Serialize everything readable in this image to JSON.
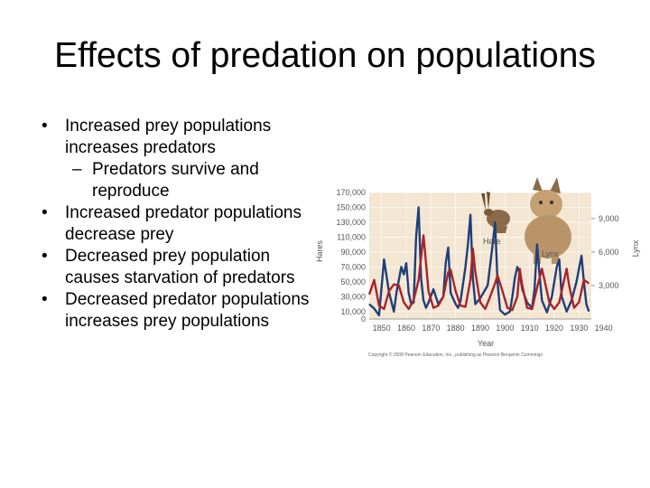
{
  "slide": {
    "title": "Effects of predation on populations",
    "bullets": [
      {
        "text": "Increased prey populations increases predators",
        "sub": [
          "Predators survive and reproduce"
        ]
      },
      {
        "text": "Increased predator populations decrease prey",
        "sub": []
      },
      {
        "text": "Decreased prey population causes starvation of predators",
        "sub": []
      },
      {
        "text": "Decreased predator populations increases prey populations",
        "sub": []
      }
    ],
    "dash": "–"
  },
  "chart_data": {
    "type": "line",
    "xlabel": "Year",
    "ylabel_left": "Hares",
    "ylabel_right": "Lynx",
    "xlim": [
      1845,
      1935
    ],
    "ylim_left": [
      0,
      170000
    ],
    "ylim_right": [
      0,
      11333
    ],
    "x_ticks": [
      1850,
      1860,
      1870,
      1880,
      1890,
      1900,
      1910,
      1920,
      1930,
      1940
    ],
    "y_ticks_left": [
      {
        "v": 0,
        "label": "0"
      },
      {
        "v": 10000,
        "label": "10,000"
      },
      {
        "v": 30000,
        "label": "30,000"
      },
      {
        "v": 50000,
        "label": "50,000"
      },
      {
        "v": 70000,
        "label": "70,000"
      },
      {
        "v": 90000,
        "label": "90,000"
      },
      {
        "v": 110000,
        "label": "110,000"
      },
      {
        "v": 130000,
        "label": "130,000"
      },
      {
        "v": 150000,
        "label": "150,000"
      },
      {
        "v": 170000,
        "label": "170,000"
      }
    ],
    "y_ticks_right": [
      {
        "v": 3000,
        "label": "3,000"
      },
      {
        "v": 6000,
        "label": "6,000"
      },
      {
        "v": 9000,
        "label": "9,000"
      }
    ],
    "series": [
      {
        "name": "Hare",
        "color": "#1f3f7a",
        "axis": "left",
        "points": [
          [
            1845,
            20000
          ],
          [
            1847,
            14000
          ],
          [
            1849,
            5000
          ],
          [
            1851,
            80000
          ],
          [
            1853,
            36000
          ],
          [
            1855,
            10000
          ],
          [
            1856,
            35000
          ],
          [
            1858,
            70000
          ],
          [
            1859,
            60000
          ],
          [
            1860,
            75000
          ],
          [
            1861,
            35000
          ],
          [
            1862,
            20000
          ],
          [
            1863,
            22000
          ],
          [
            1864,
            110000
          ],
          [
            1865,
            150000
          ],
          [
            1866,
            55000
          ],
          [
            1867,
            25000
          ],
          [
            1868,
            15000
          ],
          [
            1869,
            22000
          ],
          [
            1871,
            40000
          ],
          [
            1873,
            20000
          ],
          [
            1875,
            30000
          ],
          [
            1876,
            75000
          ],
          [
            1877,
            96000
          ],
          [
            1878,
            35000
          ],
          [
            1880,
            20000
          ],
          [
            1881,
            15000
          ],
          [
            1882,
            24000
          ],
          [
            1884,
            70000
          ],
          [
            1885,
            100000
          ],
          [
            1886,
            140000
          ],
          [
            1887,
            55000
          ],
          [
            1888,
            20000
          ],
          [
            1890,
            28000
          ],
          [
            1893,
            45000
          ],
          [
            1895,
            100000
          ],
          [
            1896,
            130000
          ],
          [
            1897,
            50000
          ],
          [
            1898,
            12000
          ],
          [
            1900,
            6000
          ],
          [
            1902,
            10000
          ],
          [
            1903,
            30000
          ],
          [
            1904,
            55000
          ],
          [
            1905,
            70000
          ],
          [
            1906,
            62000
          ],
          [
            1907,
            40000
          ],
          [
            1909,
            22000
          ],
          [
            1911,
            15000
          ],
          [
            1912,
            40000
          ],
          [
            1913,
            100000
          ],
          [
            1914,
            60000
          ],
          [
            1915,
            25000
          ],
          [
            1917,
            9000
          ],
          [
            1919,
            30000
          ],
          [
            1921,
            70000
          ],
          [
            1922,
            80000
          ],
          [
            1923,
            30000
          ],
          [
            1925,
            10000
          ],
          [
            1927,
            25000
          ],
          [
            1929,
            50000
          ],
          [
            1931,
            85000
          ],
          [
            1932,
            50000
          ],
          [
            1933,
            20000
          ],
          [
            1934,
            10000
          ]
        ]
      },
      {
        "name": "Lynx",
        "color": "#a8232b",
        "axis": "right",
        "points": [
          [
            1845,
            2200
          ],
          [
            1847,
            3500
          ],
          [
            1849,
            1200
          ],
          [
            1851,
            900
          ],
          [
            1853,
            2500
          ],
          [
            1855,
            3100
          ],
          [
            1857,
            3000
          ],
          [
            1859,
            1500
          ],
          [
            1861,
            900
          ],
          [
            1863,
            1700
          ],
          [
            1865,
            3500
          ],
          [
            1867,
            7500
          ],
          [
            1868,
            5000
          ],
          [
            1869,
            2500
          ],
          [
            1871,
            1000
          ],
          [
            1873,
            1200
          ],
          [
            1875,
            2000
          ],
          [
            1877,
            4200
          ],
          [
            1878,
            4400
          ],
          [
            1880,
            2500
          ],
          [
            1882,
            1200
          ],
          [
            1884,
            1100
          ],
          [
            1886,
            3500
          ],
          [
            1887,
            6300
          ],
          [
            1888,
            4200
          ],
          [
            1890,
            1500
          ],
          [
            1892,
            900
          ],
          [
            1894,
            2000
          ],
          [
            1896,
            3200
          ],
          [
            1897,
            3900
          ],
          [
            1899,
            2500
          ],
          [
            1901,
            1000
          ],
          [
            1903,
            800
          ],
          [
            1905,
            2000
          ],
          [
            1906,
            4500
          ],
          [
            1907,
            3000
          ],
          [
            1909,
            1000
          ],
          [
            1911,
            900
          ],
          [
            1913,
            2800
          ],
          [
            1915,
            4500
          ],
          [
            1916,
            3500
          ],
          [
            1918,
            1500
          ],
          [
            1920,
            900
          ],
          [
            1922,
            1500
          ],
          [
            1924,
            3500
          ],
          [
            1925,
            4500
          ],
          [
            1926,
            3000
          ],
          [
            1928,
            1000
          ],
          [
            1930,
            1500
          ],
          [
            1932,
            3500
          ],
          [
            1934,
            3200
          ]
        ]
      }
    ],
    "annotations": [
      {
        "text": "Hare",
        "series": "Hare"
      },
      {
        "text": "Lynx",
        "series": "Lynx"
      }
    ],
    "credit": "Copyright © 2008 Pearson Education, Inc., publishing as Pearson Benjamin Cummings",
    "grid": true,
    "colors": {
      "plot_bg": "#f3e6d2",
      "axis_text": "#555555",
      "hare_illustration": "#8a6a48",
      "lynx_illustration": "#b89468"
    }
  }
}
